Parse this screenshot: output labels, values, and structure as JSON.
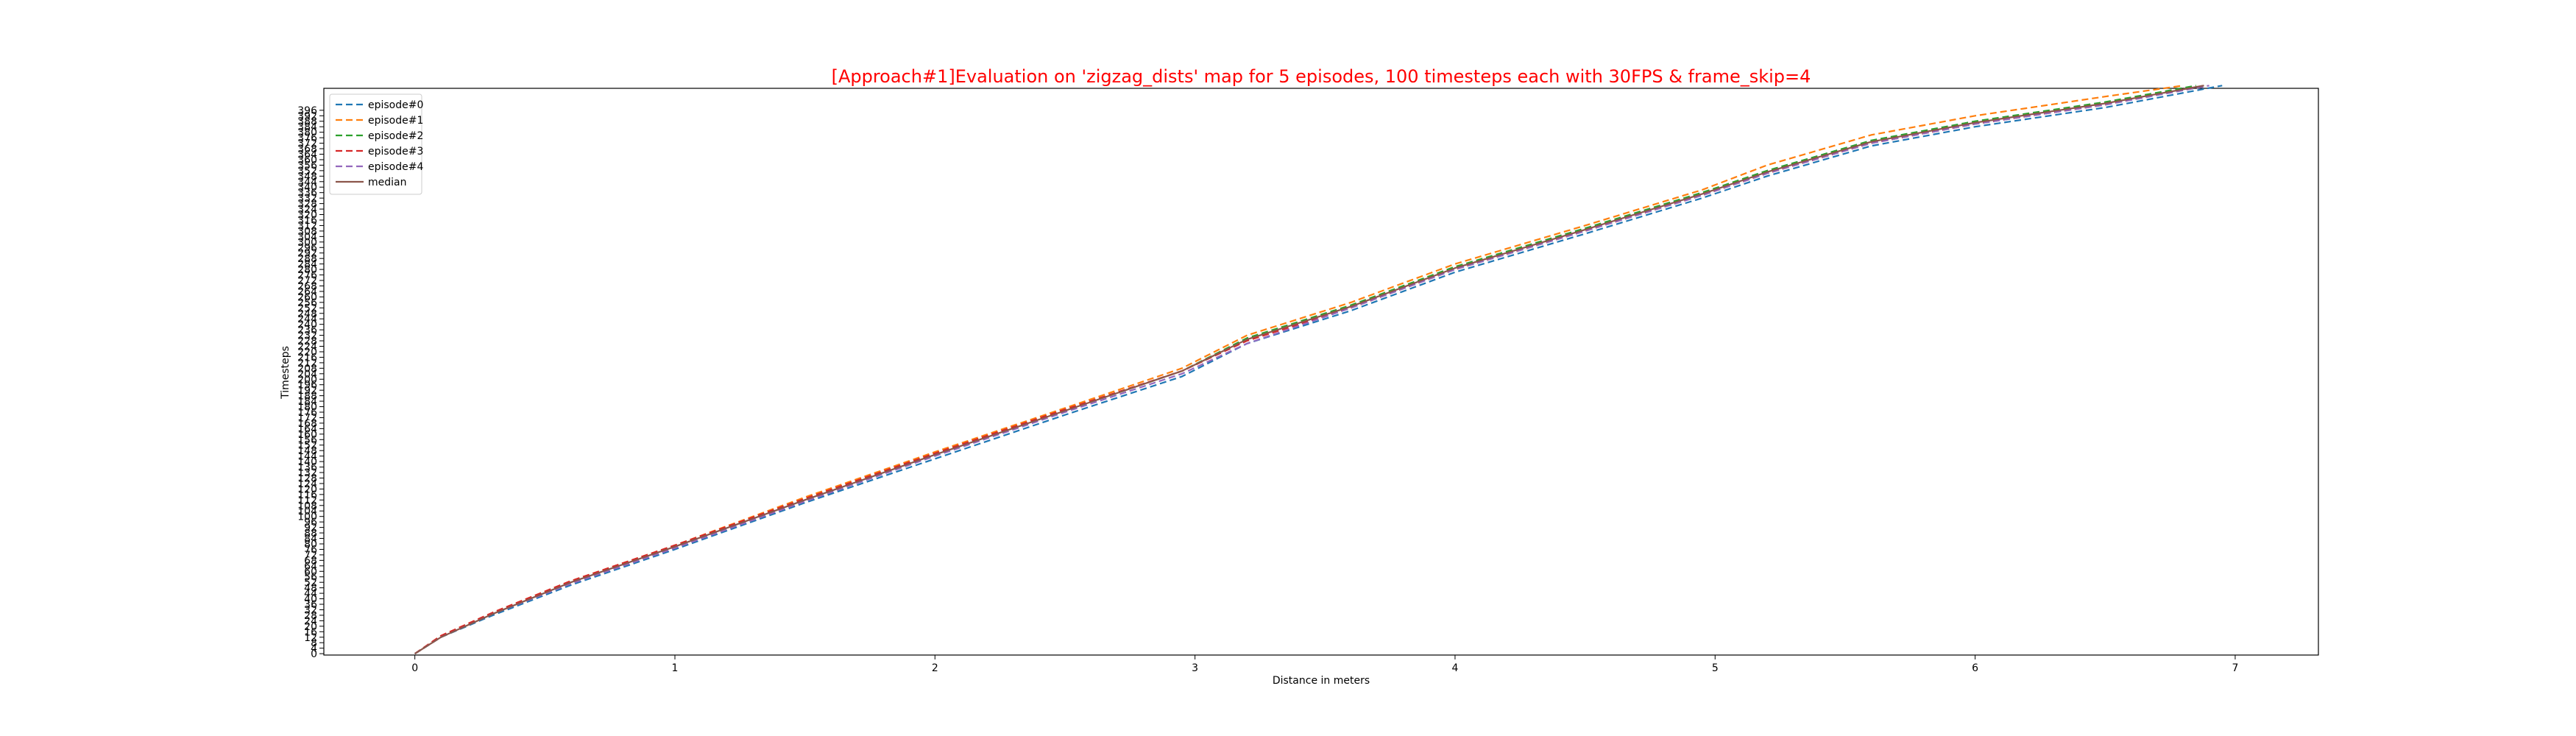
{
  "chart_data": {
    "type": "line",
    "title": "[Approach#1]Evaluation on 'zigzag_dists' map for 5 episodes, 100 timesteps each with 30FPS & frame_skip=4",
    "title_color": "#ff0000",
    "xlabel": "Distance in meters",
    "ylabel": "Timesteps",
    "xlim": [
      -0.35,
      7.32
    ],
    "ylim": [
      -1,
      412
    ],
    "x_ticks": [
      0,
      1,
      2,
      3,
      4,
      5,
      6,
      7
    ],
    "y_ticks": [
      0,
      4,
      8,
      12,
      16,
      20,
      24,
      28,
      32,
      36,
      40,
      44,
      48,
      52,
      56,
      60,
      64,
      68,
      72,
      76,
      80,
      84,
      88,
      92,
      96,
      100,
      104,
      108,
      112,
      116,
      120,
      124,
      128,
      132,
      136,
      140,
      144,
      148,
      152,
      156,
      160,
      164,
      168,
      172,
      176,
      180,
      184,
      188,
      192,
      196,
      200,
      204,
      208,
      212,
      216,
      220,
      224,
      228,
      232,
      236,
      240,
      244,
      248,
      252,
      256,
      260,
      264,
      268,
      272,
      276,
      280,
      284,
      288,
      292,
      296,
      300,
      304,
      308,
      312,
      316,
      320,
      324,
      328,
      332,
      336,
      340,
      344,
      348,
      352,
      356,
      360,
      364,
      368,
      372,
      376,
      380,
      384,
      388,
      392,
      396
    ],
    "legend_position": "upper-left",
    "grid": false,
    "series": [
      {
        "name": "episode#0",
        "color": "#1f77b4",
        "style": "dashed",
        "x": [
          0,
          0.1,
          0.3,
          0.6,
          1.0,
          1.5,
          2.0,
          2.5,
          2.95,
          3.2,
          3.6,
          4.0,
          4.5,
          4.95,
          5.2,
          5.6,
          6.0,
          6.5,
          6.95
        ],
        "y": [
          0,
          12,
          28,
          50,
          76,
          110,
          142,
          174,
          202,
          226,
          250,
          278,
          306,
          332,
          348,
          370,
          384,
          398,
          414
        ]
      },
      {
        "name": "episode#1",
        "color": "#ff7f0e",
        "style": "dashed",
        "x": [
          0,
          0.1,
          0.3,
          0.6,
          1.0,
          1.5,
          2.0,
          2.5,
          2.95,
          3.2,
          3.6,
          4.0,
          4.5,
          4.95,
          5.2,
          5.6,
          6.0,
          6.5,
          6.8
        ],
        "y": [
          0,
          13,
          30,
          53,
          79,
          114,
          147,
          179,
          208,
          232,
          256,
          284,
          312,
          338,
          356,
          378,
          392,
          406,
          414
        ]
      },
      {
        "name": "episode#2",
        "color": "#2ca02c",
        "style": "dashed",
        "x": [
          0,
          0.1,
          0.3,
          0.6,
          1.0,
          1.5,
          2.0,
          2.5,
          2.95,
          3.2,
          3.6,
          4.0,
          4.5,
          4.95,
          5.2,
          5.6,
          6.0,
          6.5,
          6.85
        ],
        "y": [
          0,
          12,
          29,
          52,
          78,
          112,
          145,
          177,
          206,
          230,
          254,
          282,
          310,
          336,
          352,
          374,
          388,
          402,
          414
        ]
      },
      {
        "name": "episode#3",
        "color": "#d62728",
        "style": "dashed",
        "x": [
          0,
          0.1,
          0.3,
          0.6,
          1.0,
          1.5,
          2.0,
          2.5,
          2.95,
          3.2,
          3.6,
          4.0,
          4.5,
          4.95,
          5.2,
          5.6,
          6.0,
          6.5,
          6.88
        ],
        "y": [
          0,
          13,
          30,
          53,
          79,
          113,
          146,
          178,
          206,
          228,
          252,
          280,
          308,
          334,
          350,
          372,
          386,
          400,
          414
        ]
      },
      {
        "name": "episode#4",
        "color": "#9467bd",
        "style": "dashed",
        "x": [
          0,
          0.1,
          0.3,
          0.6,
          1.0,
          1.5,
          2.0,
          2.5,
          2.95,
          3.2,
          3.6,
          4.0,
          4.5,
          4.95,
          5.2,
          5.6,
          6.0,
          6.5,
          6.9
        ],
        "y": [
          0,
          12,
          29,
          51,
          77,
          111,
          144,
          176,
          204,
          226,
          252,
          280,
          308,
          334,
          350,
          372,
          386,
          400,
          414
        ]
      },
      {
        "name": "median",
        "color": "#8c564b",
        "style": "solid",
        "x": [
          0,
          0.1,
          0.3,
          0.6,
          1.0,
          1.5,
          2.0,
          2.5,
          2.95,
          3.2,
          3.6,
          4.0,
          4.5,
          4.95,
          5.2,
          5.6,
          6.0,
          6.5,
          6.88
        ],
        "y": [
          0,
          12,
          29,
          52,
          78,
          112,
          145,
          177,
          206,
          229,
          253,
          281,
          309,
          335,
          351,
          373,
          387,
          401,
          414
        ]
      }
    ]
  }
}
